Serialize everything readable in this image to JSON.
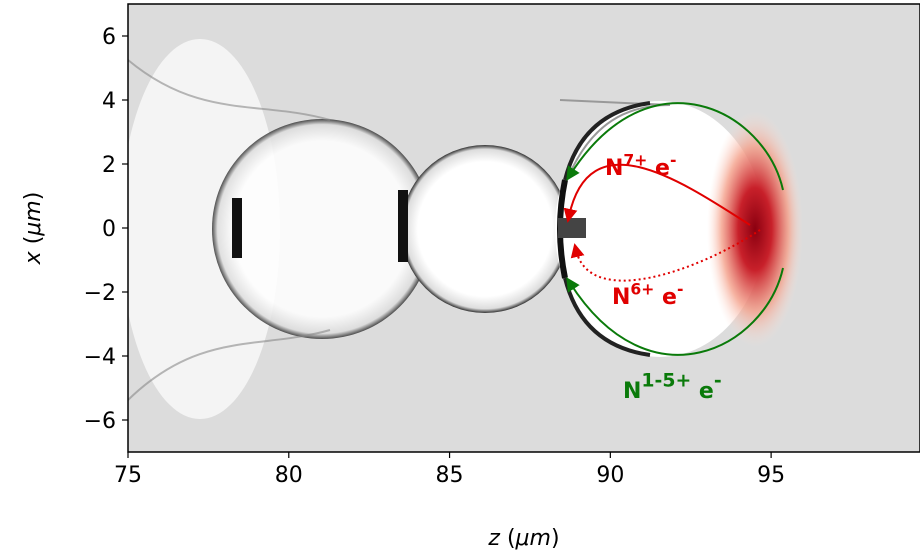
{
  "chart_data": {
    "type": "image",
    "xlabel": {
      "var": "z",
      "unit": "μm"
    },
    "ylabel": {
      "var": "x",
      "unit": "μm"
    },
    "xlim": [
      75,
      99.63
    ],
    "ylim": [
      -7,
      7
    ],
    "xticks": [
      75,
      80,
      85,
      90,
      95
    ],
    "yticks": [
      {
        "value": -6,
        "label": "−6"
      },
      {
        "value": -4,
        "label": "−4"
      },
      {
        "value": -2,
        "label": "−2"
      },
      0,
      2,
      4,
      6
    ],
    "annotations": [
      {
        "base": "N",
        "sup": "7+",
        "tail": " e",
        "sup2": "-",
        "color": "#e00000"
      },
      {
        "base": "N",
        "sup": "6+",
        "tail": " e",
        "sup2": "-",
        "color": "#e00000"
      },
      {
        "base": "N",
        "sup": "1-5+",
        "tail": " e",
        "sup2": "-",
        "color": "#0a7a0a"
      }
    ]
  }
}
